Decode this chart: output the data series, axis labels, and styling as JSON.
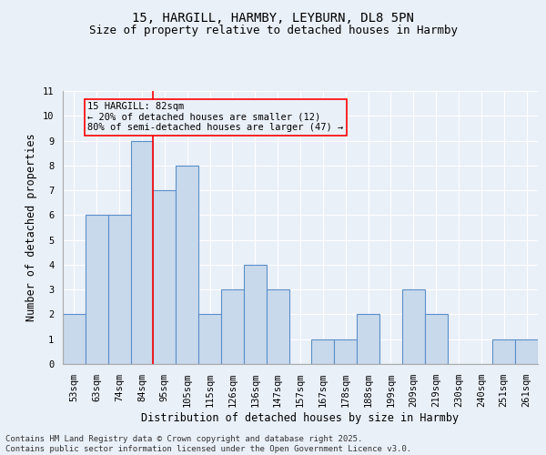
{
  "title_line1": "15, HARGILL, HARMBY, LEYBURN, DL8 5PN",
  "title_line2": "Size of property relative to detached houses in Harmby",
  "xlabel": "Distribution of detached houses by size in Harmby",
  "ylabel": "Number of detached properties",
  "categories": [
    "53sqm",
    "63sqm",
    "74sqm",
    "84sqm",
    "95sqm",
    "105sqm",
    "115sqm",
    "126sqm",
    "136sqm",
    "147sqm",
    "157sqm",
    "167sqm",
    "178sqm",
    "188sqm",
    "199sqm",
    "209sqm",
    "219sqm",
    "230sqm",
    "240sqm",
    "251sqm",
    "261sqm"
  ],
  "values": [
    2,
    6,
    6,
    9,
    7,
    8,
    2,
    3,
    4,
    3,
    0,
    1,
    1,
    2,
    0,
    3,
    2,
    0,
    0,
    1,
    1
  ],
  "bar_color": "#c8d9ec",
  "bar_edge_color": "#5b8fc9",
  "bar_edge_width": 0.8,
  "annotation_line1": "15 HARGILL: 82sqm",
  "annotation_line2": "← 20% of detached houses are smaller (12)",
  "annotation_line3": "80% of semi-detached houses are larger (47) →",
  "red_line_x": 3.5,
  "ylim": [
    0,
    11
  ],
  "yticks": [
    0,
    1,
    2,
    3,
    4,
    5,
    6,
    7,
    8,
    9,
    10,
    11
  ],
  "background_color": "#eaf0f8",
  "grid_color": "#ffffff",
  "footer_line1": "Contains HM Land Registry data © Crown copyright and database right 2025.",
  "footer_line2": "Contains public sector information licensed under the Open Government Licence v3.0.",
  "title_fontsize": 10,
  "subtitle_fontsize": 9,
  "axis_label_fontsize": 8.5,
  "tick_fontsize": 7.5,
  "annotation_fontsize": 7.5,
  "footer_fontsize": 6.5
}
